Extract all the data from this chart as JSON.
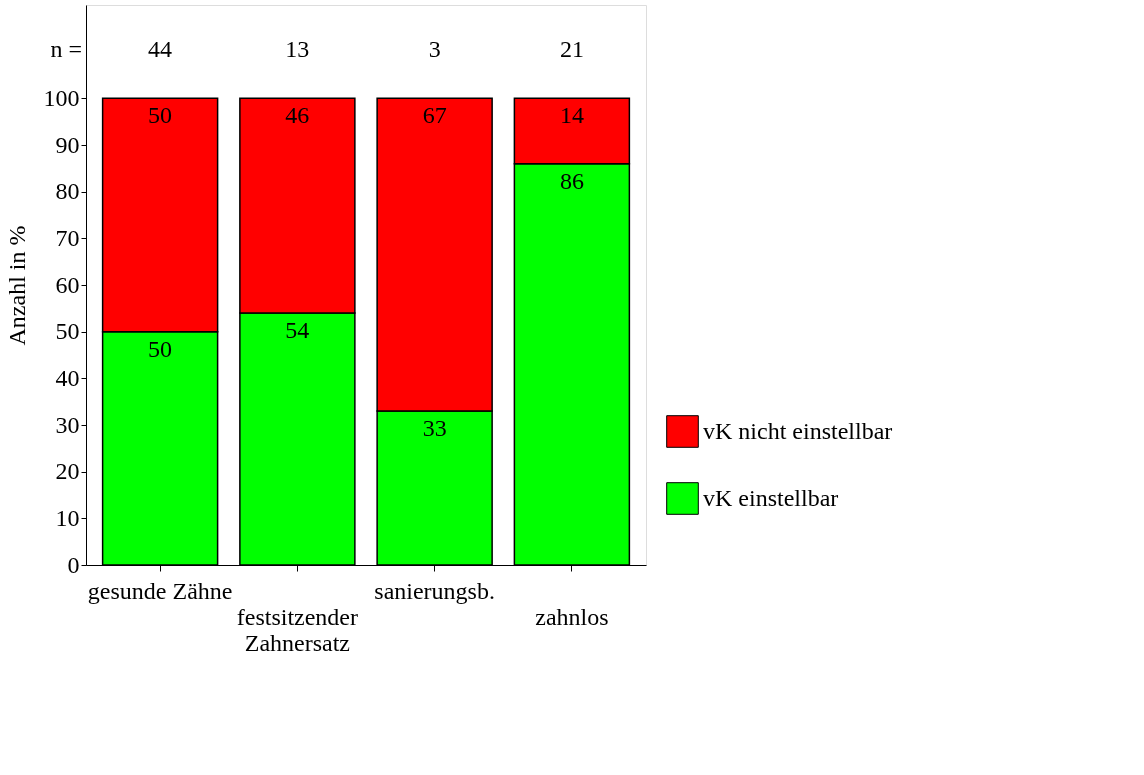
{
  "chart_data": {
    "type": "bar",
    "stacked": true,
    "ylabel": "Anzahl in %",
    "categories": [
      "gesunde Zähne",
      "festsitzender Zahnersatz",
      "sanierungsb.",
      "zahnlos"
    ],
    "series": [
      {
        "name": "vK einstellbar",
        "color": "#00ff00",
        "values": [
          50,
          54,
          33,
          86
        ]
      },
      {
        "name": "vK nicht einstellbar",
        "color": "#ff0000",
        "values": [
          50,
          46,
          67,
          14
        ]
      }
    ],
    "data_labels": true,
    "ylim": [
      0,
      120
    ],
    "yticks": [
      0,
      10,
      20,
      30,
      40,
      50,
      60,
      70,
      80,
      90,
      100
    ],
    "grid": false,
    "legend": "right",
    "annotations": [
      "n =",
      "44",
      "13",
      "3",
      "21"
    ]
  }
}
